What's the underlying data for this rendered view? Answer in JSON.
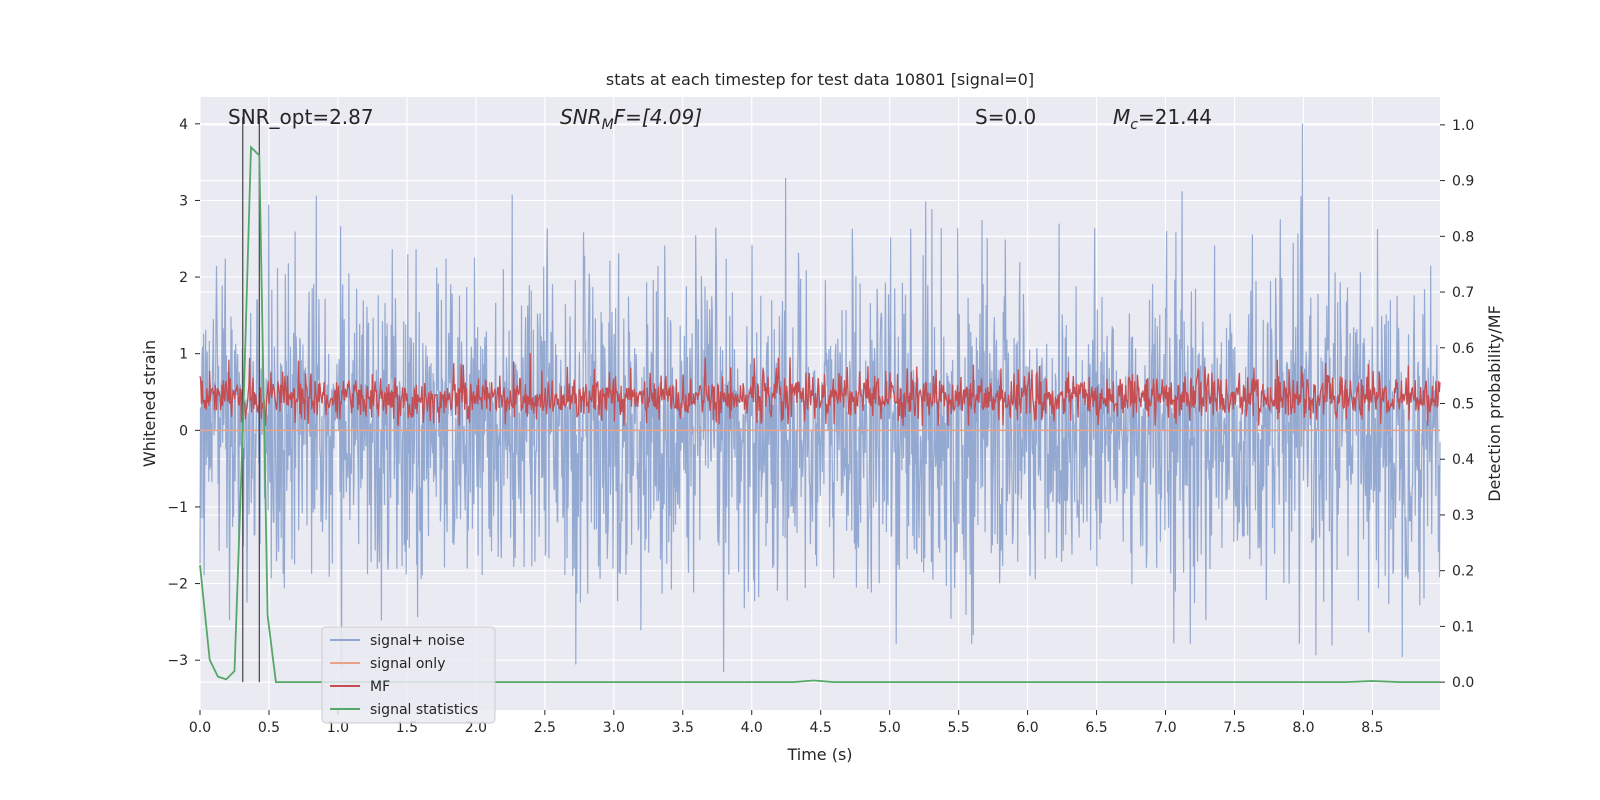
{
  "chart_data": {
    "type": "line",
    "title": "stats at each timestep for test data 10801 [signal=0]",
    "xlabel": "Time (s)",
    "ylabel": "Whitened strain",
    "ylabel_right": "Detection probability/MF",
    "xlim": [
      0.0,
      8.99
    ],
    "ylim": [
      -3.65,
      4.35
    ],
    "ylim_right": [
      -0.05,
      1.05
    ],
    "x_ticks": [
      0.0,
      0.5,
      1.0,
      1.5,
      2.0,
      2.5,
      3.0,
      3.5,
      4.0,
      4.5,
      5.0,
      5.5,
      6.0,
      6.5,
      7.0,
      7.5,
      8.0,
      8.5
    ],
    "x_tick_labels": [
      "0.0",
      "0.5",
      "1.0",
      "1.5",
      "2.0",
      "2.5",
      "3.0",
      "3.5",
      "4.0",
      "4.5",
      "5.0",
      "5.5",
      "6.0",
      "6.5",
      "7.0",
      "7.5",
      "8.0",
      "8.5"
    ],
    "y_ticks": [
      -3,
      -2,
      -1,
      0,
      1,
      2,
      3,
      4
    ],
    "y_tick_labels": [
      "−3",
      "−2",
      "−1",
      "0",
      "1",
      "2",
      "3",
      "4"
    ],
    "y_ticks_right": [
      0.0,
      0.1,
      0.2,
      0.3,
      0.4,
      0.5,
      0.6,
      0.7,
      0.8,
      0.9,
      1.0
    ],
    "y_tick_labels_right": [
      "0.0",
      "0.1",
      "0.2",
      "0.3",
      "0.4",
      "0.5",
      "0.6",
      "0.7",
      "0.8",
      "0.9",
      "1.0"
    ],
    "grid": true,
    "legend_position": "bottom-left",
    "annotations": {
      "snr_opt": "SNR_opt=2.87",
      "snr_mf_prefix": "SNR",
      "snr_mf_sub": "M",
      "snr_mf_suffix": "F=[4.09]",
      "s_value": "S=0.0",
      "mc_prefix": "M",
      "mc_sub": "c",
      "mc_suffix": "=21.44"
    },
    "vertical_markers_x": [
      0.31,
      0.43
    ],
    "series": [
      {
        "name": "signal+ noise",
        "color": "#8fa5cf",
        "axis": "left",
        "description_samples": {
          "min": -3.3,
          "max": 4.0,
          "typical_band": [
            -1.1,
            1.1
          ]
        }
      },
      {
        "name": "signal only",
        "color": "#e8a288",
        "axis": "left",
        "x": [
          0.0,
          8.99
        ],
        "y": [
          0.0,
          0.0
        ]
      },
      {
        "name": "MF",
        "color": "#c44e52",
        "axis": "right",
        "description_samples": {
          "min": 0.46,
          "max": 0.64,
          "typical_band": [
            0.47,
            0.55
          ]
        }
      },
      {
        "name": "signal statistics",
        "color": "#55a868",
        "axis": "right",
        "x": [
          0.0,
          0.07,
          0.13,
          0.19,
          0.25,
          0.31,
          0.37,
          0.43,
          0.49,
          0.55,
          0.62,
          1.0,
          2.0,
          3.0,
          4.0,
          4.3,
          4.45,
          4.6,
          5.0,
          6.0,
          7.0,
          8.0,
          8.3,
          8.5,
          8.7,
          8.99
        ],
        "y": [
          0.21,
          0.04,
          0.01,
          0.005,
          0.02,
          0.45,
          0.96,
          0.945,
          0.12,
          0.0,
          0.0,
          0.0,
          0.0,
          0.0,
          0.0,
          0.0,
          0.003,
          0.0,
          0.0,
          0.0,
          0.0,
          0.0,
          0.0,
          0.002,
          0.0,
          0.0
        ]
      }
    ]
  }
}
